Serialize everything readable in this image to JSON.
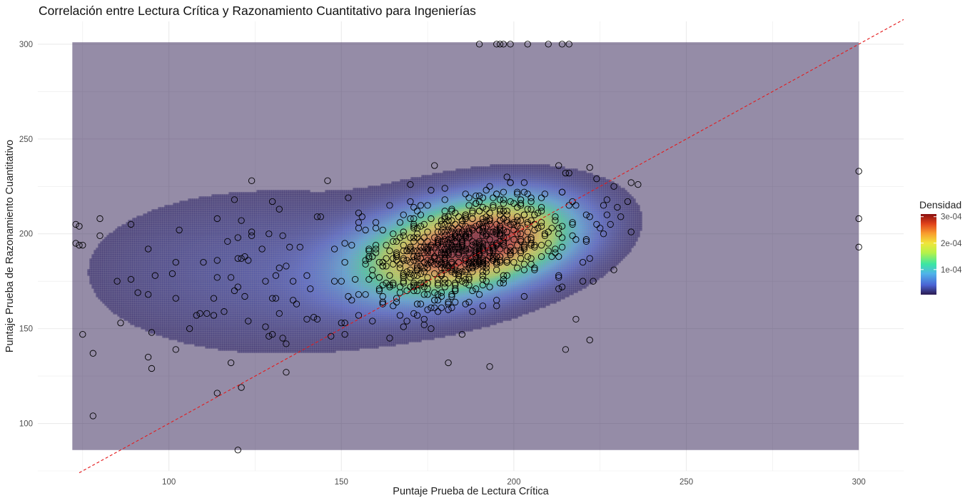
{
  "chart_data": {
    "type": "scatter",
    "title": "Correlación entre Lectura Crítica y Razonamiento Cuantitativo para Ingenierías",
    "xlabel": "Puntaje Prueba de Lectura Crítica",
    "ylabel": "Puntaje Prueba de Razonamiento Cuantitativo",
    "xlim": [
      62,
      313
    ],
    "ylim": [
      75,
      312
    ],
    "x_ticks": [
      100,
      150,
      200,
      250,
      300
    ],
    "y_ticks": [
      100,
      150,
      200,
      250,
      300
    ],
    "grid": true,
    "reference_line": {
      "slope": 1,
      "intercept": 0,
      "color": "#e41a1c",
      "style": "dashed"
    },
    "density_layer": {
      "type": "heatmap",
      "x_range": [
        72,
        300
      ],
      "y_range": [
        86,
        301
      ],
      "palette": [
        "#2b1a4f",
        "#4a63d4",
        "#4fb3ea",
        "#3be6a2",
        "#b5f24a",
        "#f1e53a",
        "#f99d2e",
        "#e0421b",
        "#8a0f0f"
      ],
      "opacity": 0.5
    },
    "legend": {
      "title": "Densidad",
      "placement": "right",
      "range": [
        5e-06,
        0.00031
      ],
      "ticks": [
        {
          "value": 0.0001,
          "label": "1e-04"
        },
        {
          "value": 0.0002,
          "label": "2e-04"
        },
        {
          "value": 0.0003,
          "label": "3e-04"
        }
      ]
    },
    "points": {
      "marker": "open-circle",
      "outliers": [
        [
          73,
          205
        ],
        [
          74,
          204
        ],
        [
          73,
          195
        ],
        [
          74,
          194
        ],
        [
          75,
          194
        ],
        [
          75,
          147
        ],
        [
          78,
          137
        ],
        [
          78,
          104
        ],
        [
          80,
          208
        ],
        [
          80,
          199
        ],
        [
          85,
          175
        ],
        [
          86,
          153
        ],
        [
          89,
          205
        ],
        [
          89,
          176
        ],
        [
          91,
          169
        ],
        [
          94,
          192
        ],
        [
          94,
          168
        ],
        [
          94,
          135
        ],
        [
          95,
          148
        ],
        [
          95,
          129
        ],
        [
          96,
          178
        ],
        [
          101,
          179
        ],
        [
          102,
          185
        ],
        [
          102,
          166
        ],
        [
          102,
          139
        ],
        [
          103,
          202
        ],
        [
          106,
          150
        ],
        [
          108,
          157
        ],
        [
          109,
          158
        ],
        [
          110,
          185
        ],
        [
          111,
          158
        ],
        [
          113,
          157
        ],
        [
          113,
          166
        ],
        [
          114,
          186
        ],
        [
          114,
          177
        ],
        [
          114,
          208
        ],
        [
          114,
          116
        ],
        [
          116,
          159
        ],
        [
          117,
          196
        ],
        [
          118,
          132
        ],
        [
          118,
          177
        ],
        [
          119,
          218
        ],
        [
          119,
          170
        ],
        [
          120,
          198
        ],
        [
          120,
          172
        ],
        [
          120,
          187
        ],
        [
          121,
          207
        ],
        [
          121,
          119
        ],
        [
          121,
          187
        ],
        [
          122,
          188
        ],
        [
          122,
          167
        ],
        [
          123,
          154
        ],
        [
          123,
          186
        ],
        [
          124,
          201
        ],
        [
          124,
          228
        ],
        [
          124,
          199
        ],
        [
          120,
          86
        ],
        [
          127,
          192
        ],
        [
          128,
          151
        ],
        [
          128,
          175
        ],
        [
          129,
          146
        ],
        [
          129,
          200
        ],
        [
          130,
          147
        ],
        [
          130,
          217
        ],
        [
          130,
          166
        ],
        [
          131,
          166
        ],
        [
          131,
          178
        ],
        [
          132,
          182
        ],
        [
          132,
          213
        ],
        [
          132,
          158
        ],
        [
          133,
          145
        ],
        [
          133,
          199
        ],
        [
          134,
          142
        ],
        [
          134,
          127
        ],
        [
          134,
          183
        ],
        [
          135,
          193
        ],
        [
          136,
          175
        ],
        [
          136,
          165
        ],
        [
          137,
          163
        ],
        [
          138,
          193
        ],
        [
          140,
          155
        ],
        [
          140,
          178
        ],
        [
          141,
          171
        ],
        [
          142,
          156
        ],
        [
          143,
          209
        ],
        [
          143,
          155
        ],
        [
          144,
          209
        ],
        [
          146,
          228
        ],
        [
          147,
          146
        ],
        [
          148,
          175
        ],
        [
          148,
          192
        ],
        [
          150,
          153
        ],
        [
          151,
          147
        ],
        [
          193,
          130
        ],
        [
          215,
          139
        ],
        [
          300,
          233
        ],
        [
          300,
          208
        ],
        [
          300,
          193
        ],
        [
          190,
          300
        ],
        [
          195,
          300
        ],
        [
          196,
          300
        ],
        [
          197,
          300
        ],
        [
          199,
          300
        ],
        [
          204,
          300
        ],
        [
          210,
          300
        ],
        [
          214,
          300
        ],
        [
          216,
          300
        ],
        [
          215,
          232
        ],
        [
          218,
          155
        ],
        [
          220,
          175
        ],
        [
          222,
          144
        ],
        [
          222,
          235
        ],
        [
          223,
          175
        ],
        [
          224,
          205
        ],
        [
          226,
          215
        ],
        [
          226,
          200
        ],
        [
          228,
          205
        ],
        [
          229,
          181
        ],
        [
          230,
          214
        ],
        [
          231,
          209
        ],
        [
          233,
          217
        ],
        [
          234,
          201
        ],
        [
          234,
          227
        ],
        [
          236,
          226
        ]
      ],
      "cluster": {
        "n": 720,
        "x_mean": 185,
        "x_sd": 16,
        "y_mean": 192,
        "y_sd": 16,
        "correlation": 0.45,
        "x_range": [
          150,
          232
        ],
        "y_range": [
          130,
          236
        ]
      }
    }
  }
}
